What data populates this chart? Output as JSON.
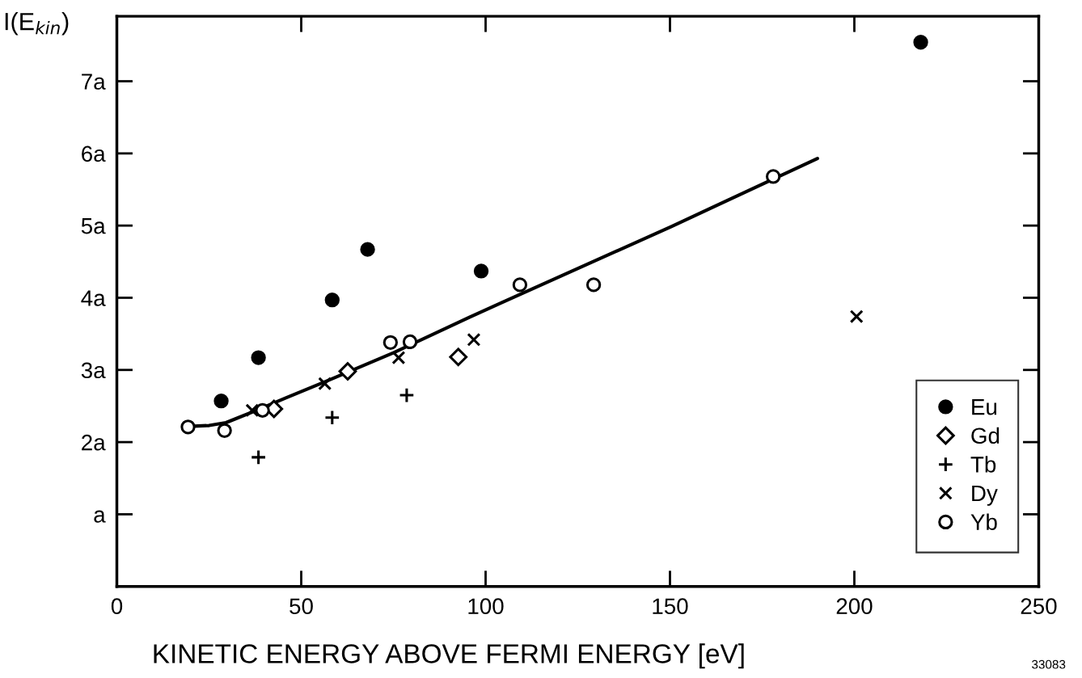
{
  "chart_data": {
    "type": "scatter",
    "ylabel": "I(E$_{kin}$)",
    "xlabel": "KINETIC ENERGY ABOVE FERMI ENERGY [eV]",
    "xlim": [
      0,
      250
    ],
    "xticks": [
      0,
      50,
      100,
      150,
      200,
      250
    ],
    "ylim": [
      0,
      7.9
    ],
    "yticks": [
      {
        "value": 1,
        "label": "a"
      },
      {
        "value": 2,
        "label": "2a"
      },
      {
        "value": 3,
        "label": "3a"
      },
      {
        "value": 4,
        "label": "4a"
      },
      {
        "value": 5,
        "label": "5a"
      },
      {
        "value": 6,
        "label": "6a"
      },
      {
        "value": 7,
        "label": "7a"
      }
    ],
    "grid": false,
    "legend": "bottom right",
    "annotations": [
      "33083"
    ],
    "series": [
      {
        "name": "Eu",
        "color": "#000000",
        "marker": "circle",
        "x": [
          28.3,
          38.4,
          58.4,
          68.0,
          98.8,
          218
        ],
        "values": [
          2.57,
          3.17,
          3.97,
          4.67,
          4.37,
          7.54
        ]
      },
      {
        "name": "Gd",
        "color": "#ffffff",
        "marker": "diamond",
        "x": [
          42.6,
          62.6,
          92.6
        ],
        "values": [
          2.46,
          2.98,
          3.18
        ]
      },
      {
        "name": "Tb",
        "color": "#000000",
        "marker": "plus",
        "x": [
          38.4,
          58.4,
          78.6
        ],
        "values": [
          1.79,
          2.34,
          2.65
        ]
      },
      {
        "name": "Dy",
        "color": "#000000",
        "marker": "cross",
        "x": [
          36.7,
          56.4,
          76.4,
          96.8,
          200.6
        ],
        "values": [
          2.44,
          2.81,
          3.17,
          3.42,
          3.74
        ]
      },
      {
        "name": "Yb",
        "color": "#ffffff",
        "marker": "circle",
        "x": [
          19.3,
          29.2,
          39.5,
          74.2,
          79.5,
          109.3,
          129.3,
          178
        ],
        "values": [
          2.21,
          2.16,
          2.44,
          3.38,
          3.39,
          4.18,
          4.18,
          5.68
        ]
      },
      {
        "type": "line",
        "color": "#000000",
        "marker": "none",
        "x": [
          20.9,
          25.0,
          29.6,
          33.0,
          36.9,
          45.7,
          56.6,
          75.1,
          95.6,
          104.3,
          150.5,
          190
        ],
        "values": [
          2.22,
          2.23,
          2.27,
          2.34,
          2.42,
          2.61,
          2.84,
          3.24,
          3.73,
          3.93,
          4.99,
          5.93
        ]
      }
    ]
  }
}
